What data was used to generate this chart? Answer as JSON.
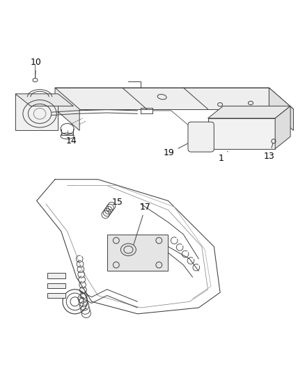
{
  "bg_color": "#ffffff",
  "line_color": "#404040",
  "label_color": "#000000",
  "label_fontsize": 9,
  "lw": 0.7
}
